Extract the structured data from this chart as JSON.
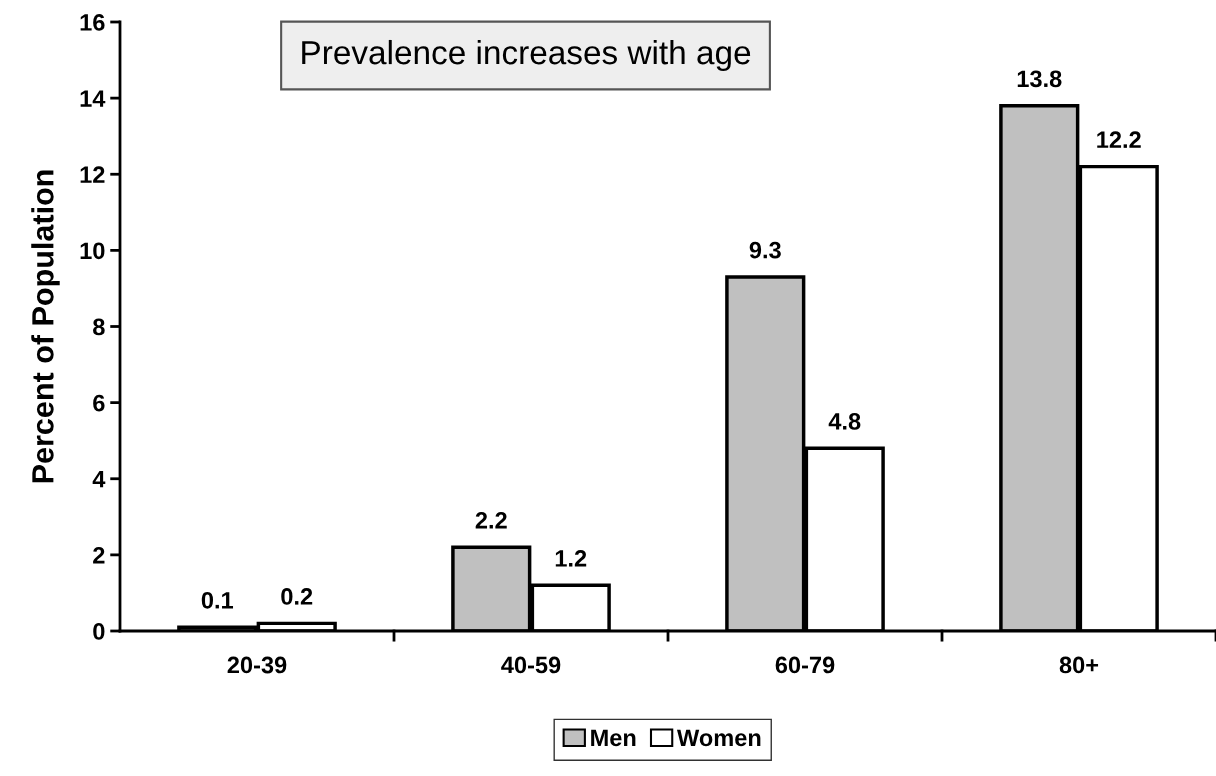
{
  "chart_data": {
    "type": "bar",
    "title": "Prevalence increases with age",
    "ylabel": "Percent of Population",
    "categories": [
      "20-39",
      "40-59",
      "60-79",
      "80+"
    ],
    "series": [
      {
        "name": "Men",
        "color": "#c0c0c0",
        "values": [
          0.1,
          2.2,
          9.3,
          13.8
        ]
      },
      {
        "name": "Women",
        "color": "#ffffff",
        "values": [
          0.2,
          1.2,
          4.8,
          12.2
        ]
      }
    ],
    "ylim": [
      0,
      16
    ],
    "yticks": [
      0,
      2,
      4,
      6,
      8,
      10,
      12,
      14,
      16
    ],
    "data_labels": true,
    "grid": false,
    "legend": "bottom"
  }
}
